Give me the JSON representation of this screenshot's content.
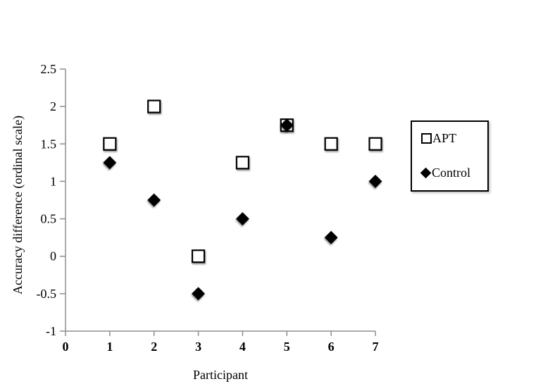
{
  "chart_data": {
    "type": "scatter",
    "title": "",
    "xlabel": "Participant",
    "ylabel": "Accuracy difference (ordinal scale)",
    "x": [
      1,
      2,
      3,
      4,
      5,
      6,
      7
    ],
    "series": [
      {
        "name": "APT",
        "marker": "open-square",
        "values": [
          1.5,
          2,
          0,
          1.25,
          1.75,
          1.5,
          1.5
        ]
      },
      {
        "name": "Control",
        "marker": "filled-diamond",
        "values": [
          1.25,
          0.75,
          -0.5,
          0.5,
          1.75,
          0.25,
          1
        ]
      }
    ],
    "xlim": [
      0,
      7
    ],
    "ylim": [
      -1,
      2.5
    ],
    "x_ticks": [
      "0",
      "1",
      "2",
      "3",
      "4",
      "5",
      "6",
      "7"
    ],
    "y_ticks": [
      "2.5",
      "2",
      "1.5",
      "1",
      "0.5",
      "0",
      "-0.5",
      "-1"
    ],
    "grid": false,
    "legend_position": "right",
    "colors": {
      "axis": "#8e8e8e",
      "marker_stroke": "#000000",
      "square_fill": "#ffffff",
      "diamond_fill": "#000000",
      "text": "#000000",
      "background": "#ffffff"
    }
  }
}
